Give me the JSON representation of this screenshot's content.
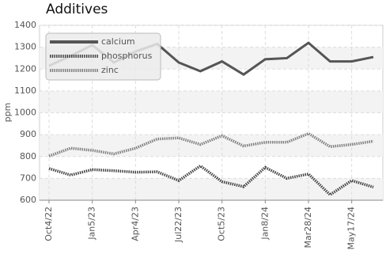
{
  "chart_data": {
    "type": "line",
    "title": "Additives",
    "y_label": "ppm",
    "categories": [
      "Oct4/22",
      null,
      "Jan5/23",
      null,
      "Apr4/23",
      null,
      "Jul22/23",
      null,
      "Oct5/23",
      null,
      "Jan8/24",
      null,
      "Mar28/24",
      null,
      "May17/24",
      null
    ],
    "series": [
      {
        "name": "calcium",
        "color": "#555555",
        "style": "solid",
        "values": [
          1215,
          1260,
          1310,
          1230,
          1280,
          1315,
          1230,
          1190,
          1235,
          1175,
          1245,
          1250,
          1320,
          1235,
          1235,
          1255
        ]
      },
      {
        "name": "phosphorus",
        "color": "#444444",
        "style": "dotted",
        "values": [
          745,
          715,
          740,
          735,
          728,
          730,
          690,
          757,
          685,
          662,
          750,
          700,
          720,
          625,
          690,
          660
        ]
      },
      {
        "name": "zinc",
        "color": "#808080",
        "style": "dotted",
        "values": [
          802,
          838,
          828,
          812,
          838,
          880,
          885,
          855,
          895,
          848,
          865,
          865,
          905,
          845,
          855,
          870
        ]
      }
    ],
    "ylim": [
      600,
      1400
    ],
    "yticks": [
      600,
      700,
      800,
      900,
      1000,
      1100,
      1200,
      1300,
      1400
    ],
    "grid": true,
    "legend": "top-left"
  }
}
